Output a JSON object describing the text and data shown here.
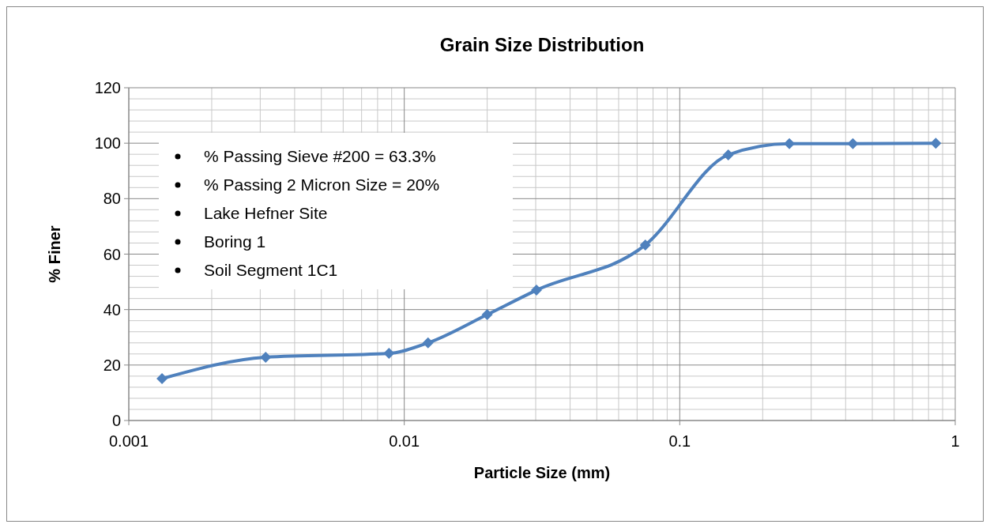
{
  "chart_data": {
    "type": "line",
    "title": "Grain Size Distribution",
    "xlabel": "Particle Size (mm)",
    "ylabel": "% Finer",
    "annotations": [
      "% Passing Sieve #200 = 63.3%",
      "% Passing 2 Micron Size = 20%",
      "Lake Hefner Site",
      "Boring 1",
      "Soil Segment 1C1"
    ],
    "log": "x",
    "xlim": [
      0.001,
      1
    ],
    "xticks": [
      0.001,
      0.01,
      0.1,
      1
    ],
    "ylim": [
      0,
      120
    ],
    "yticks": [
      0,
      20,
      40,
      60,
      80,
      100,
      120
    ],
    "grid": true,
    "marker": "diamond",
    "line_style": "solid",
    "series": [
      {
        "color": "#4f81bd",
        "x": [
          0.00132,
          0.00314,
          0.0088,
          0.0122,
          0.02,
          0.0302,
          0.075,
          0.15,
          0.25,
          0.425,
          0.85
        ],
        "values": [
          15.1,
          22.8,
          24.2,
          28,
          38.2,
          47,
          63.3,
          95.8,
          99.8,
          99.8,
          100
        ]
      }
    ]
  }
}
